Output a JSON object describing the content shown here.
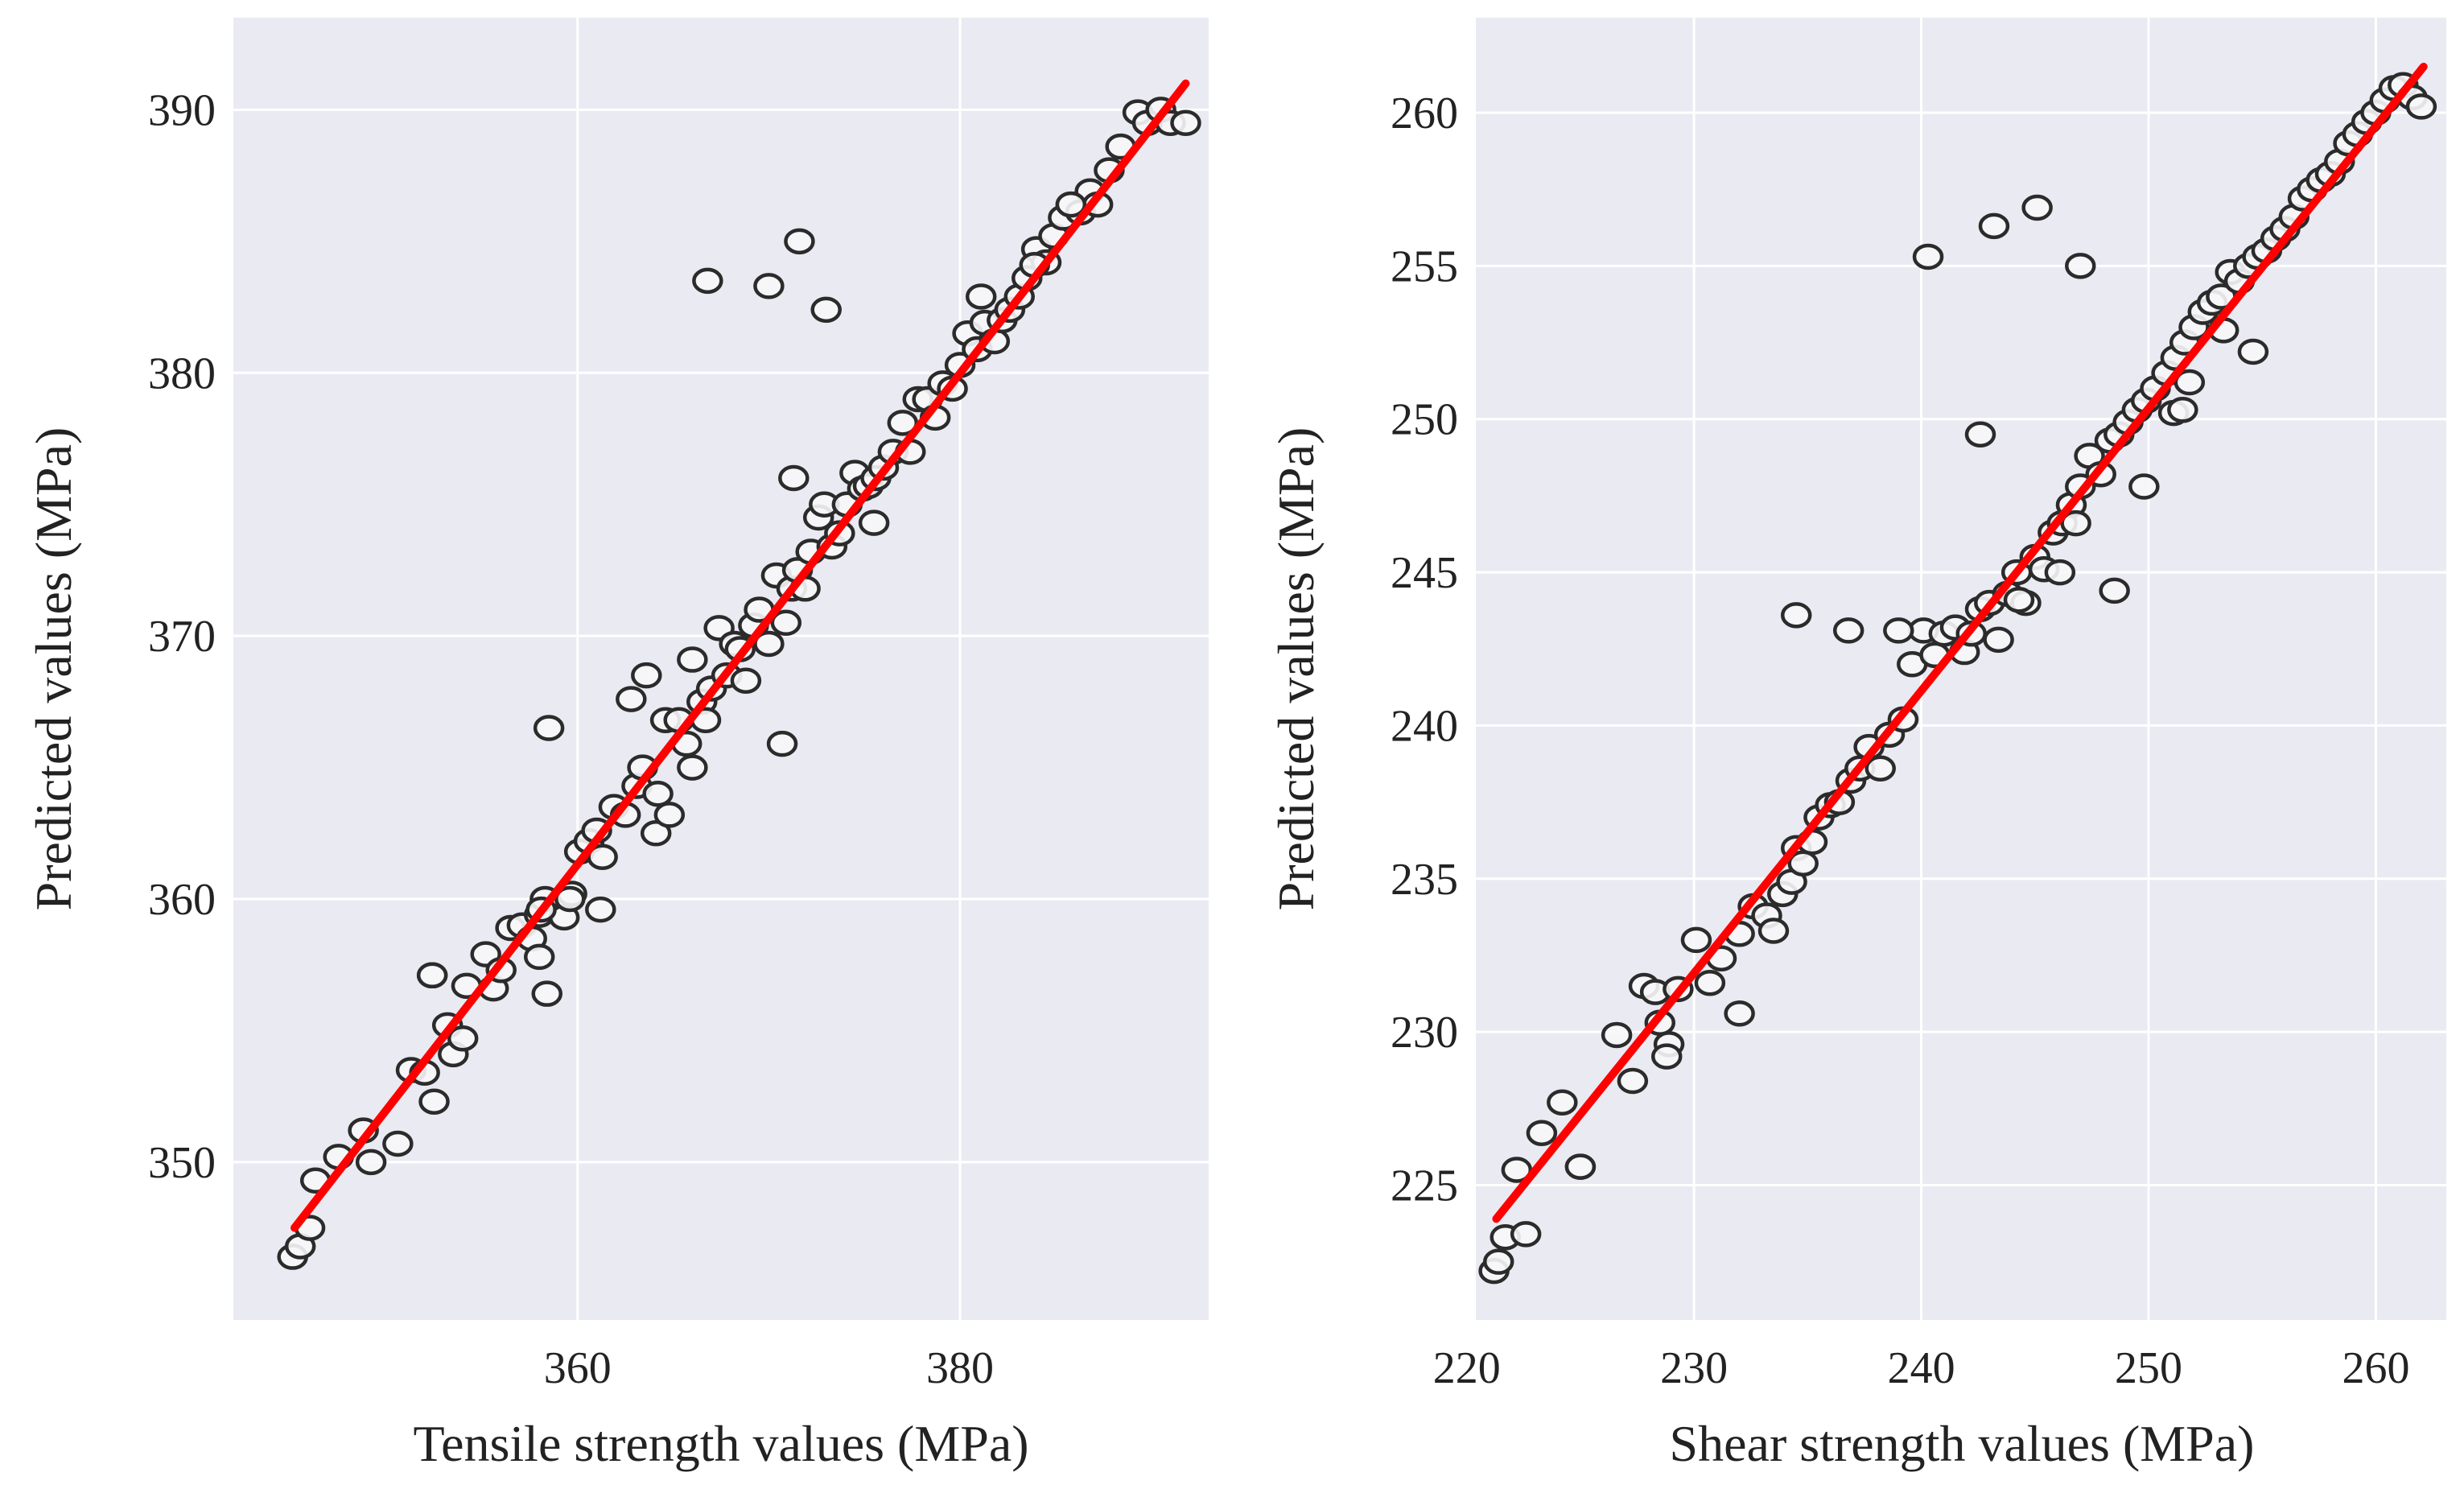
{
  "chart_data": [
    {
      "type": "scatter",
      "xlabel": "Tensile strength values (MPa)",
      "ylabel": "Predicted values (MPa)",
      "xlim": [
        342,
        393
      ],
      "ylim": [
        344,
        393.5
      ],
      "xticks": [
        360,
        380
      ],
      "yticks": [
        350,
        360,
        370,
        380,
        390
      ],
      "grid": true,
      "fit_line": {
        "x": [
          345.2,
          391.8
        ],
        "y": [
          347.5,
          391.0
        ],
        "color": "#ff0000"
      },
      "series": [
        {
          "name": "data",
          "x": [
            345.1,
            345.5,
            346.0,
            346.3,
            347.5,
            348.8,
            349.2,
            350.6,
            351.3,
            352.0,
            352.5,
            352.4,
            353.2,
            353.5,
            354.0,
            354.2,
            355.2,
            355.6,
            356.0,
            356.5,
            357.1,
            357.6,
            358.0,
            358.3,
            358.4,
            358.5,
            358.0,
            359.3,
            359.7,
            360.1,
            360.6,
            361.0,
            361.3,
            361.2,
            361.9,
            362.5,
            362.8,
            363.1,
            363.4,
            364.1,
            364.6,
            364.8,
            365.3,
            365.7,
            366.0,
            366.5,
            366.7,
            367.0,
            367.4,
            367.8,
            368.2,
            368.5,
            368.8,
            369.2,
            369.5,
            370.0,
            370.4,
            370.9,
            371.2,
            371.5,
            371.9,
            372.2,
            372.6,
            372.9,
            373.3,
            373.7,
            374.1,
            374.5,
            374.9,
            375.2,
            375.6,
            376.0,
            376.5,
            377.0,
            377.4,
            377.8,
            378.3,
            378.7,
            379.1,
            379.6,
            380.0,
            380.4,
            380.9,
            381.3,
            381.8,
            382.2,
            382.6,
            383.1,
            383.5,
            384.0,
            384.5,
            384.9,
            385.4,
            385.8,
            386.3,
            386.8,
            387.2,
            387.8,
            388.4,
            389.3,
            389.8,
            390.5,
            391.0,
            391.8,
            381.1,
            383.9,
            385.8,
            375.5,
            366.8,
            370.0,
            371.6,
            373.0,
            358.1,
            363.6,
            366.0,
            370.7,
            371.3,
            364.2,
            359.6,
            352.4
          ],
          "y": [
            346.4,
            346.8,
            347.5,
            349.3,
            350.2,
            351.2,
            350.0,
            350.7,
            353.5,
            353.4,
            352.3,
            357.1,
            355.2,
            354.1,
            354.7,
            356.7,
            357.9,
            356.6,
            357.3,
            358.9,
            359.0,
            358.5,
            359.4,
            360.0,
            356.4,
            366.5,
            357.8,
            359.3,
            360.2,
            361.8,
            362.2,
            362.6,
            361.6,
            359.6,
            363.5,
            363.2,
            367.6,
            364.3,
            365.0,
            362.5,
            366.8,
            363.2,
            366.8,
            365.9,
            365.0,
            367.5,
            366.8,
            368.0,
            370.3,
            368.5,
            369.7,
            369.5,
            368.3,
            370.4,
            371.0,
            369.7,
            372.3,
            370.5,
            371.8,
            372.5,
            371.8,
            373.2,
            374.5,
            375.0,
            373.4,
            373.9,
            375.0,
            376.2,
            375.6,
            375.7,
            376.0,
            376.4,
            377.0,
            378.1,
            377.0,
            379.0,
            379.0,
            378.3,
            379.6,
            379.4,
            380.3,
            381.5,
            380.9,
            381.9,
            381.2,
            382.0,
            382.4,
            382.9,
            383.6,
            384.7,
            384.2,
            385.2,
            385.9,
            386.4,
            386.1,
            386.9,
            386.4,
            387.7,
            388.6,
            389.9,
            389.5,
            390.0,
            389.5,
            389.5,
            382.9,
            384.1,
            386.4,
            374.3,
            383.5,
            383.3,
            385.0,
            382.4,
            359.6,
            368.5,
            369.1,
            365.9,
            376.0,
            364.0,
            360.0,
            357.1
          ]
        }
      ]
    },
    {
      "type": "scatter",
      "xlabel": "Shear strength values (MPa)",
      "ylabel": "Predicted values (MPa)",
      "xlim": [
        220.4,
        263.1
      ],
      "ylim": [
        220.6,
        263.1
      ],
      "xticks": [
        220,
        230,
        240,
        250,
        260
      ],
      "yticks": [
        225,
        230,
        235,
        240,
        245,
        250,
        255,
        260
      ],
      "grid": true,
      "fit_line": {
        "x": [
          221.3,
          262.1
        ],
        "y": [
          223.9,
          261.5
        ],
        "color": "#ff0000"
      },
      "series": [
        {
          "name": "data",
          "x": [
            221.2,
            221.4,
            221.7,
            222.2,
            222.6,
            223.3,
            224.2,
            225.0,
            226.6,
            227.3,
            227.8,
            228.3,
            228.5,
            228.9,
            229.3,
            230.1,
            230.7,
            231.2,
            232.0,
            232.6,
            233.2,
            233.5,
            233.9,
            234.3,
            234.5,
            234.8,
            235.2,
            235.5,
            236.0,
            236.4,
            236.9,
            237.3,
            237.7,
            238.2,
            238.6,
            239.2,
            239.6,
            240.1,
            240.6,
            241.0,
            241.5,
            241.9,
            242.2,
            242.6,
            243.0,
            243.4,
            243.8,
            244.2,
            244.6,
            245.0,
            245.4,
            245.8,
            246.2,
            246.6,
            247.0,
            247.4,
            247.9,
            248.3,
            248.7,
            249.1,
            249.5,
            249.9,
            250.3,
            250.8,
            251.2,
            251.6,
            252.0,
            252.4,
            252.8,
            253.2,
            253.6,
            254.0,
            254.4,
            254.8,
            255.2,
            255.6,
            256.0,
            256.4,
            256.8,
            257.2,
            257.6,
            258.0,
            258.4,
            258.8,
            259.2,
            259.6,
            260.0,
            260.4,
            260.8,
            261.2,
            261.6,
            262.0,
            247.0,
            248.5,
            251.1,
            251.8,
            240.3,
            243.2,
            245.1,
            246.8,
            242.6,
            234.5,
            236.8,
            239.0,
            249.8,
            251.5,
            253.3,
            254.6,
            232.0,
            228.8,
            225.0,
            244.3,
            246.1
          ],
          "y": [
            222.2,
            222.5,
            223.3,
            225.5,
            223.4,
            226.7,
            227.7,
            225.6,
            229.9,
            228.4,
            231.5,
            231.3,
            230.3,
            229.6,
            231.4,
            233.0,
            231.6,
            232.4,
            233.2,
            234.1,
            233.8,
            233.3,
            234.5,
            234.9,
            236.0,
            235.5,
            236.2,
            237.0,
            237.4,
            237.5,
            238.2,
            238.6,
            239.3,
            238.6,
            239.7,
            240.2,
            242.0,
            243.1,
            242.3,
            243.0,
            243.2,
            242.4,
            243.0,
            243.8,
            244.0,
            242.8,
            244.3,
            245.0,
            244.0,
            245.5,
            245.1,
            246.3,
            246.6,
            247.2,
            247.8,
            248.8,
            248.2,
            249.3,
            249.5,
            249.9,
            250.3,
            250.6,
            251.0,
            251.5,
            252.0,
            252.5,
            253.0,
            253.5,
            253.8,
            254.0,
            254.8,
            254.5,
            255.0,
            255.3,
            255.5,
            255.9,
            256.2,
            256.6,
            257.2,
            257.5,
            257.8,
            258.0,
            258.4,
            259.0,
            259.3,
            259.7,
            260.0,
            260.4,
            260.8,
            260.9,
            260.5,
            260.2,
            255.0,
            244.4,
            250.2,
            251.2,
            255.3,
            256.3,
            256.9,
            246.6,
            249.5,
            243.6,
            243.1,
            243.1,
            247.8,
            250.3,
            252.9,
            252.2,
            230.6,
            229.2,
            225.6,
            244.1,
            245.0
          ]
        }
      ]
    }
  ]
}
